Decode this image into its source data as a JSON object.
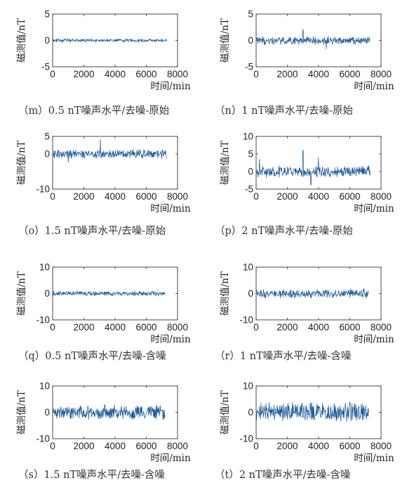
{
  "colors": {
    "signal": "#1f5a99",
    "axis": "#333333"
  },
  "chart_data": [
    {
      "id": "m",
      "type": "line",
      "caption": "（m）0.5 nT噪声水平/去噪-原始",
      "xlabel": "时间/min",
      "ylabel": "磁测值/nT",
      "xlim": [
        0,
        8000
      ],
      "ylim": [
        -5,
        5
      ],
      "xticks": [
        "0",
        "2000",
        "4000",
        "6000",
        "8000"
      ],
      "yticks": [
        "5",
        "0",
        "-5"
      ],
      "series": [
        {
          "x_end": 7300,
          "amplitude": 0.35,
          "spikes": []
        }
      ]
    },
    {
      "id": "n",
      "type": "line",
      "caption": "（n）1 nT噪声水平/去噪-原始",
      "xlabel": "时间/min",
      "ylabel": "磁测值/nT",
      "xlim": [
        0,
        8000
      ],
      "ylim": [
        -5,
        5
      ],
      "xticks": [
        "0",
        "2000",
        "4000",
        "6000",
        "8000"
      ],
      "yticks": [
        "5",
        "0",
        "-5"
      ],
      "series": [
        {
          "x_end": 7300,
          "amplitude": 0.8,
          "spikes": [
            [
              3000,
              2.0
            ],
            [
              4500,
              -1.6
            ]
          ]
        }
      ]
    },
    {
      "id": "o",
      "type": "line",
      "caption": "（o）1.5 nT噪声水平/去噪-原始",
      "xlabel": "时间/min",
      "ylabel": "磁测值/nT",
      "xlim": [
        0,
        8000
      ],
      "ylim": [
        -10,
        5
      ],
      "xticks": [
        "0",
        "2000",
        "4000",
        "6000",
        "8000"
      ],
      "yticks": [
        "5",
        "0",
        "-10"
      ],
      "series": [
        {
          "x_end": 7300,
          "amplitude": 1.3,
          "spikes": [
            [
              3050,
              4.2
            ],
            [
              1000,
              -2.4
            ]
          ]
        }
      ]
    },
    {
      "id": "p",
      "type": "line",
      "caption": "（p）2 nT噪声水平/去噪-原始",
      "xlabel": "时间/min",
      "ylabel": "磁测值/nT",
      "xlim": [
        0,
        8000
      ],
      "ylim": [
        -5,
        10
      ],
      "xticks": [
        "0",
        "2000",
        "4000",
        "6000",
        "8000"
      ],
      "yticks": [
        "10",
        "5",
        "0",
        "-5"
      ],
      "series": [
        {
          "x_end": 7300,
          "amplitude": 1.6,
          "spikes": [
            [
              3000,
              6.0
            ],
            [
              3500,
              -3.8
            ],
            [
              4000,
              4.0
            ],
            [
              200,
              3.5
            ]
          ]
        }
      ]
    },
    {
      "id": "q",
      "type": "line",
      "caption": "（q）0.5 nT噪声水平/去噪-含噪",
      "xlabel": "时间/min",
      "ylabel": "磁测值/nT",
      "xlim": [
        0,
        8000
      ],
      "ylim": [
        -10,
        10
      ],
      "xticks": [
        "0",
        "2000",
        "4000",
        "6000",
        "8000"
      ],
      "yticks": [
        "10",
        "0",
        "-10"
      ],
      "series": [
        {
          "x_end": 7200,
          "amplitude": 0.9,
          "spikes": []
        }
      ]
    },
    {
      "id": "r",
      "type": "line",
      "caption": "（r）1 nT噪声水平/去噪-含噪",
      "xlabel": "时间/min",
      "ylabel": "磁测值/nT",
      "xlim": [
        0,
        8000
      ],
      "ylim": [
        -10,
        10
      ],
      "xticks": [
        "0",
        "2000",
        "4000",
        "6000",
        "8000"
      ],
      "yticks": [
        "10",
        "0",
        "-10"
      ],
      "series": [
        {
          "x_end": 7200,
          "amplitude": 1.8,
          "spikes": []
        }
      ]
    },
    {
      "id": "s",
      "type": "line",
      "caption": "（s）1.5 nT噪声水平/去噪-含噪",
      "xlabel": "时间/min",
      "ylabel": "磁测值/nT",
      "xlim": [
        0,
        8000
      ],
      "ylim": [
        -10,
        10
      ],
      "xticks": [
        "0",
        "2000",
        "4000",
        "6000",
        "8000"
      ],
      "yticks": [
        "10",
        "0",
        "-10"
      ],
      "series": [
        {
          "x_end": 7200,
          "amplitude": 2.8,
          "spikes": []
        }
      ]
    },
    {
      "id": "t",
      "type": "line",
      "caption": "（t）2 nT噪声水平/去噪-含噪",
      "xlabel": "时间/min",
      "ylabel": "磁测值/nT",
      "xlim": [
        0,
        8000
      ],
      "ylim": [
        -10,
        10
      ],
      "xticks": [
        "0",
        "2000",
        "4000",
        "6000",
        "8000"
      ],
      "yticks": [
        "10",
        "0",
        "-10"
      ],
      "series": [
        {
          "x_end": 7200,
          "amplitude": 3.8,
          "spikes": []
        }
      ]
    }
  ]
}
